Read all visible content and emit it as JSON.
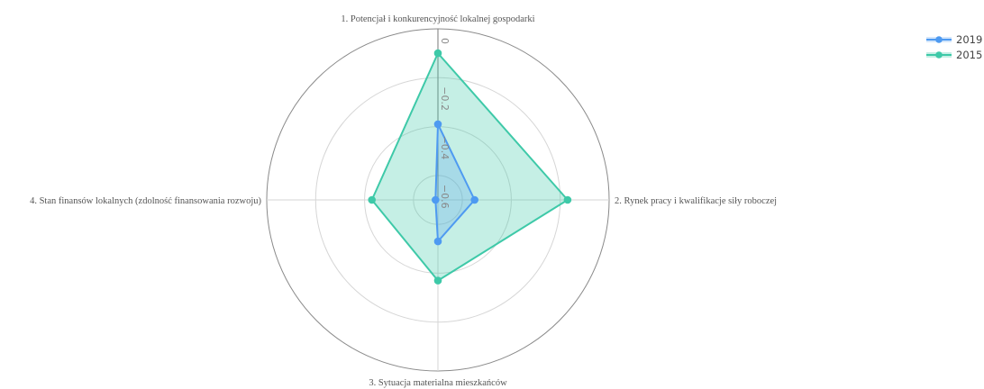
{
  "chart_data": {
    "type": "radar",
    "axes": [
      "1. Potencjał i konkurencyjność lokalnej gospodarki",
      "2. Rynek pracy i kwalifikacje siły roboczej",
      "3. Sytuacja materialna mieszkańców",
      "4. Stan finansów lokalnych  (zdolność finansowania rozwoju)"
    ],
    "radial_range": [
      -0.7,
      0
    ],
    "radial_ticks": [
      0,
      -0.2,
      -0.4,
      -0.6
    ],
    "tick_labels": [
      "0",
      "−0.2",
      "−0.4",
      "−0.6"
    ],
    "series": [
      {
        "name": "2019",
        "values": [
          -0.39,
          -0.55,
          -0.53,
          -0.69
        ],
        "color": "#4e9af1",
        "fill": "rgba(78, 154, 241, 0.25)"
      },
      {
        "name": "2015",
        "values": [
          -0.1,
          -0.17,
          -0.37,
          -0.43
        ],
        "color": "#3ec9a8",
        "fill": "rgba(62, 201, 168, 0.30)"
      }
    ],
    "legend_position": "top-right",
    "grid": true
  }
}
